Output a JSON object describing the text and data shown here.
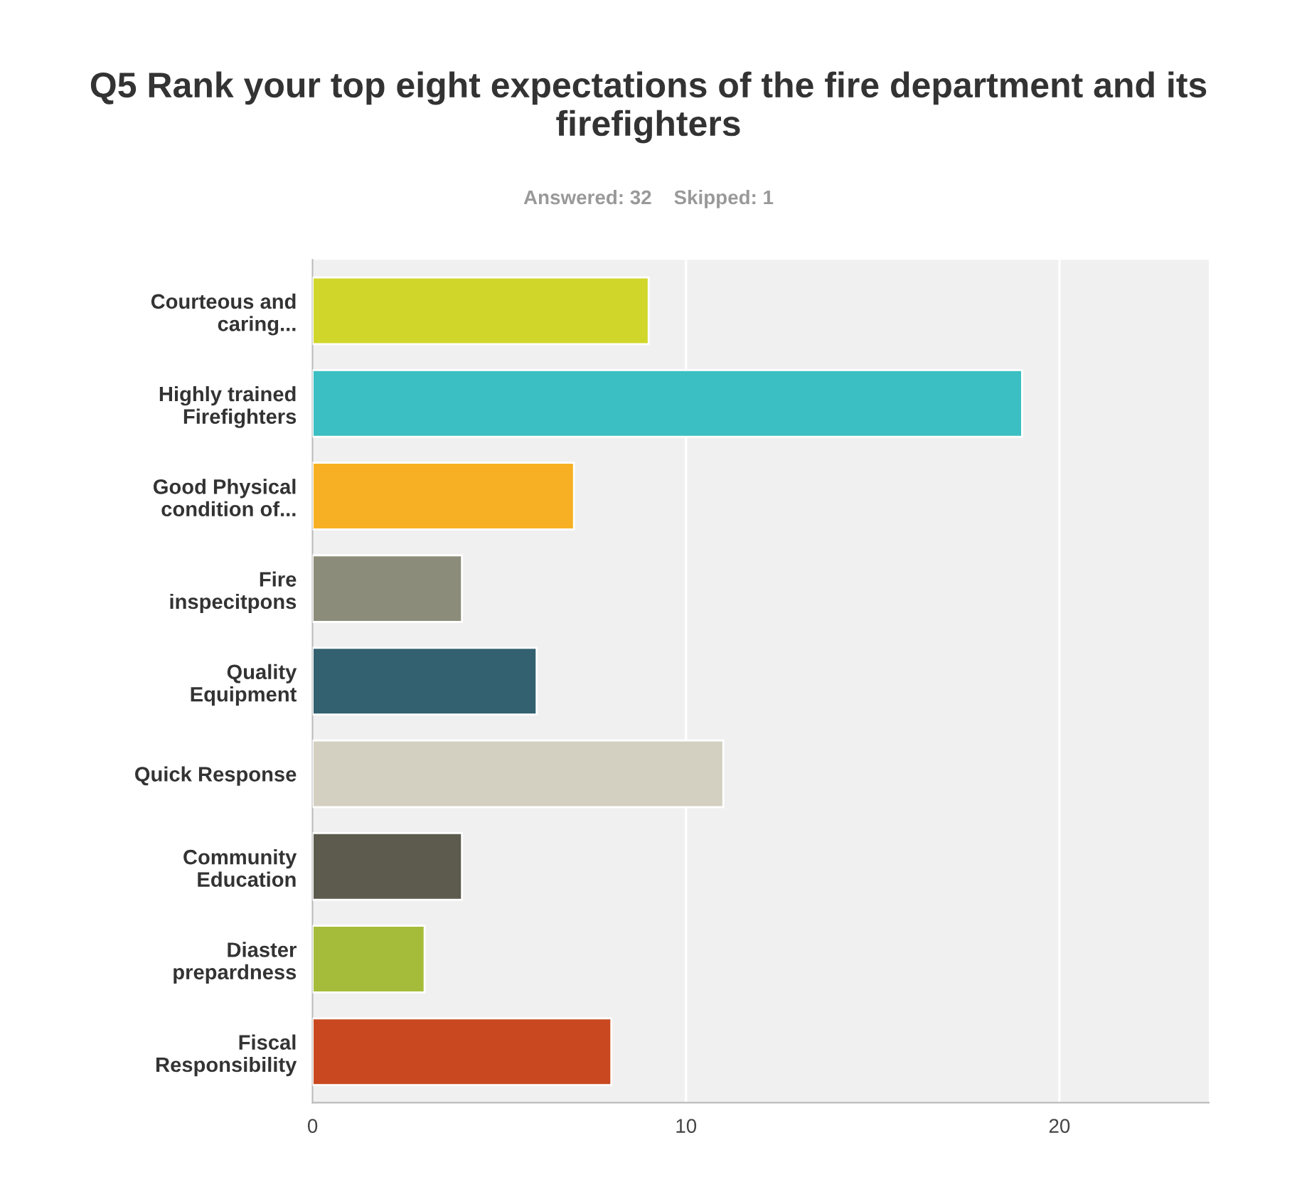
{
  "chart_data": {
    "type": "bar",
    "orientation": "horizontal",
    "title": "Q5 Rank your top eight expectations of the fire department and its firefighters",
    "subtitle": "Answered: 32    Skipped: 1",
    "categories": [
      "Courteous and\ncaring...",
      "Highly trained\nFirefighters",
      "Good Physical\ncondition of...",
      "Fire\ninspecitpons",
      "Quality\nEquipment",
      "Quick Response",
      "Community\nEducation",
      "Diaster\nprepardness",
      "Fiscal\nResponsibility"
    ],
    "values": [
      9,
      19,
      7,
      4,
      6,
      11,
      4,
      3,
      8
    ],
    "colors": [
      "#d0d72a",
      "#3bbfc2",
      "#f7b023",
      "#8c8c7a",
      "#336170",
      "#d3d0c2",
      "#5c5b4d",
      "#a5bc3a",
      "#c9481f"
    ],
    "xlim": [
      0,
      24
    ],
    "xticks": [
      0,
      10,
      20
    ],
    "grid": "x",
    "legend": false
  }
}
